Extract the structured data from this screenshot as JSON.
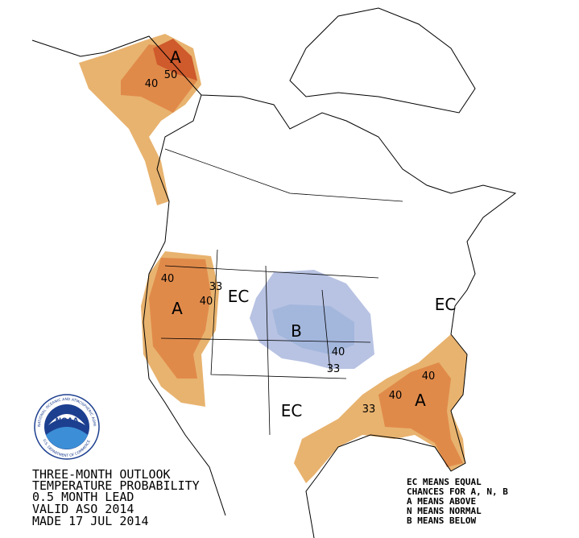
{
  "map": {
    "labels": [
      "A",
      "50",
      "40",
      "40",
      "A",
      "40",
      "33",
      "EC",
      "B",
      "40",
      "33",
      "EC",
      "EC",
      "33",
      "40",
      "40",
      "A"
    ],
    "caption": [
      "THREE-MONTH OUTLOOK",
      "TEMPERATURE PROBABILITY",
      "0.5 MONTH LEAD",
      "VALID ASO 2014",
      "MADE 17 JUL 2014"
    ],
    "legend": [
      "EC MEANS EQUAL",
      "CHANCES FOR A, N, B",
      "A MEANS ABOVE",
      "N MEANS NORMAL",
      "B MEANS BELOW"
    ],
    "logo": {
      "name": "NOAA",
      "ring_top": "NATIONAL OCEANIC AND ATMOSPHERIC ADMINISTRATION",
      "ring_bottom": "U.S. DEPARTMENT OF COMMERCE"
    }
  }
}
